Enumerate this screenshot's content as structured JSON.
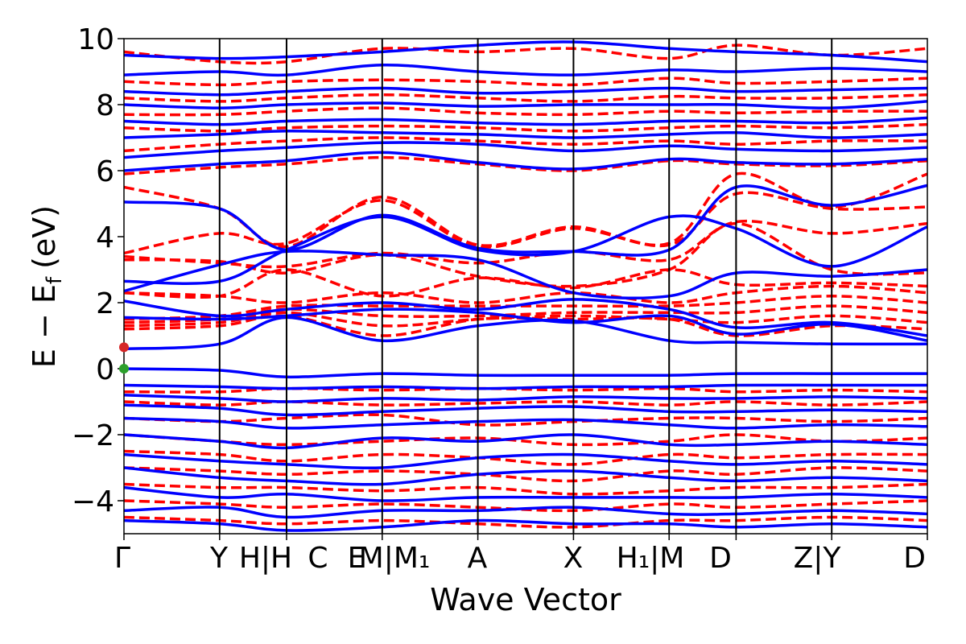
{
  "chart_data": {
    "type": "line",
    "xlabel": "Wave Vector",
    "ylabel": "E − E",
    "ylabel_subscript": "f",
    "ylabel_unit": "(eV)",
    "ylim": [
      -5,
      10
    ],
    "yticks": [
      10,
      8,
      6,
      4,
      2,
      0,
      -2,
      -4
    ],
    "ytick_labels": [
      "10",
      "8",
      "6",
      "4",
      "2",
      "0",
      "−2",
      "−4"
    ],
    "path_ticks": [
      {
        "label": "Γ",
        "pos": 0.0
      },
      {
        "label": "Y",
        "pos": 1.0
      },
      {
        "label": "H|H",
        "pos": 1.7
      },
      {
        "label": "C",
        "pos": 1.7
      },
      {
        "label": "E",
        "pos": 2.7
      },
      {
        "label": "M|M₁",
        "pos": 2.7
      },
      {
        "label": "A",
        "pos": 3.7
      },
      {
        "label": "X",
        "pos": 4.7
      },
      {
        "label": "H₁|M",
        "pos": 5.7
      },
      {
        "label": "D",
        "pos": 6.4
      },
      {
        "label": "Z|Y",
        "pos": 7.4
      },
      {
        "label": "D",
        "pos": 8.4
      }
    ],
    "xlim": [
      0,
      8.4
    ],
    "band_edge_markers": [
      {
        "x": 0,
        "y": 0.0,
        "color": "#2ca02c"
      },
      {
        "x": 0,
        "y": 0.65,
        "color": "#d62728"
      }
    ],
    "series": [
      {
        "style": "solid",
        "color": "#0000ff"
      },
      {
        "style": "dashed",
        "color": "#ff0000"
      }
    ],
    "bands_solid": [
      [
        5.05,
        4.85,
        3.6,
        4.65,
        3.65,
        3.55,
        3.6,
        5.5,
        4.95,
        5.55
      ],
      [
        2.65,
        2.65,
        3.6,
        4.6,
        3.6,
        3.55,
        4.6,
        4.25,
        3.1,
        4.3
      ],
      [
        2.35,
        3.15,
        3.55,
        3.45,
        3.3,
        2.3,
        2.2,
        2.9,
        2.8,
        3.0
      ],
      [
        2.05,
        1.6,
        1.8,
        2.0,
        1.8,
        2.1,
        1.8,
        1.25,
        1.4,
        1.0
      ],
      [
        1.55,
        1.5,
        1.6,
        1.8,
        1.7,
        1.4,
        1.6,
        1.05,
        1.35,
        0.85
      ],
      [
        0.6,
        0.75,
        1.55,
        0.85,
        1.3,
        1.45,
        0.85,
        0.8,
        0.75,
        0.75
      ],
      [
        0.0,
        -0.05,
        -0.25,
        -0.15,
        -0.2,
        -0.2,
        -0.2,
        -0.15,
        -0.15,
        -0.15
      ],
      [
        -0.5,
        -0.55,
        -0.6,
        -0.55,
        -0.6,
        -0.55,
        -0.55,
        -0.5,
        -0.5,
        -0.5
      ],
      [
        -0.8,
        -0.9,
        -1.0,
        -0.9,
        -0.95,
        -0.85,
        -0.9,
        -0.9,
        -0.85,
        -0.9
      ],
      [
        -1.1,
        -1.2,
        -1.4,
        -1.3,
        -1.2,
        -1.15,
        -1.3,
        -1.3,
        -1.25,
        -1.3
      ],
      [
        -1.5,
        -1.6,
        -1.8,
        -1.7,
        -1.6,
        -1.55,
        -1.7,
        -1.8,
        -1.7,
        -1.75
      ],
      [
        -2.0,
        -2.2,
        -2.4,
        -2.1,
        -2.2,
        -2.0,
        -2.3,
        -2.3,
        -2.2,
        -2.3
      ],
      [
        -2.6,
        -2.8,
        -2.9,
        -3.0,
        -2.7,
        -2.6,
        -2.8,
        -2.9,
        -2.8,
        -2.9
      ],
      [
        -3.0,
        -3.3,
        -3.4,
        -3.5,
        -3.2,
        -3.1,
        -3.3,
        -3.4,
        -3.3,
        -3.4
      ],
      [
        -3.6,
        -3.9,
        -3.8,
        -4.0,
        -3.9,
        -3.9,
        -3.9,
        -3.9,
        -3.8,
        -3.9
      ],
      [
        -4.3,
        -4.2,
        -4.5,
        -4.3,
        -4.3,
        -4.2,
        -4.4,
        -4.4,
        -4.3,
        -4.4
      ],
      [
        -4.6,
        -4.7,
        -4.9,
        -4.8,
        -4.6,
        -4.7,
        -4.7,
        -4.8,
        -4.7,
        -4.8
      ],
      [
        6.0,
        6.2,
        6.3,
        6.55,
        6.25,
        6.05,
        6.35,
        6.25,
        6.2,
        6.35
      ],
      [
        6.4,
        6.6,
        6.7,
        6.85,
        6.8,
        6.6,
        6.75,
        6.65,
        6.6,
        6.7
      ],
      [
        7.0,
        7.1,
        7.2,
        7.15,
        7.1,
        7.0,
        7.1,
        7.15,
        7.0,
        7.1
      ],
      [
        7.5,
        7.4,
        7.5,
        7.55,
        7.45,
        7.4,
        7.5,
        7.5,
        7.45,
        7.6
      ],
      [
        8.0,
        7.9,
        8.0,
        8.05,
        7.95,
        8.0,
        8.0,
        8.0,
        7.9,
        8.1
      ],
      [
        8.4,
        8.3,
        8.4,
        8.5,
        8.35,
        8.4,
        8.5,
        8.4,
        8.45,
        8.5
      ],
      [
        8.9,
        9.0,
        8.9,
        9.2,
        9.0,
        8.9,
        9.05,
        9.0,
        9.1,
        9.0
      ],
      [
        9.5,
        9.4,
        9.45,
        9.6,
        9.8,
        9.9,
        9.7,
        9.6,
        9.5,
        9.3
      ]
    ],
    "bands_dashed": [
      [
        5.5,
        4.85,
        3.7,
        5.2,
        3.75,
        4.3,
        3.8,
        5.9,
        4.9,
        5.9
      ],
      [
        3.5,
        4.1,
        3.8,
        5.1,
        3.7,
        4.25,
        3.75,
        5.3,
        4.85,
        4.9
      ],
      [
        3.4,
        3.2,
        3.1,
        3.5,
        3.2,
        3.55,
        3.3,
        4.45,
        4.1,
        4.4
      ],
      [
        3.3,
        3.25,
        2.9,
        3.45,
        2.8,
        2.5,
        3.0,
        4.4,
        3.0,
        2.9
      ],
      [
        2.3,
        2.2,
        3.0,
        2.2,
        2.75,
        2.45,
        3.0,
        2.55,
        2.6,
        2.5
      ],
      [
        2.3,
        2.2,
        2.0,
        2.3,
        2.0,
        2.3,
        2.0,
        2.3,
        2.5,
        2.3
      ],
      [
        1.5,
        1.6,
        1.9,
        1.9,
        1.9,
        1.9,
        1.9,
        2.0,
        2.2,
        2.0
      ],
      [
        1.4,
        1.5,
        1.8,
        1.6,
        1.6,
        1.7,
        1.7,
        1.7,
        1.9,
        1.7
      ],
      [
        1.3,
        1.4,
        1.7,
        1.3,
        1.5,
        1.6,
        1.5,
        1.4,
        1.6,
        1.4
      ],
      [
        1.2,
        1.3,
        1.6,
        1.0,
        1.5,
        1.5,
        1.5,
        1.0,
        1.3,
        1.2
      ],
      [
        -0.7,
        -0.7,
        -0.6,
        -0.65,
        -0.6,
        -0.65,
        -0.6,
        -0.7,
        -0.65,
        -0.7
      ],
      [
        -1.0,
        -1.1,
        -1.0,
        -1.1,
        -1.05,
        -1.0,
        -1.1,
        -1.0,
        -1.1,
        -1.0
      ],
      [
        -1.5,
        -1.6,
        -1.5,
        -1.4,
        -1.7,
        -1.6,
        -1.5,
        -1.5,
        -1.6,
        -1.5
      ],
      [
        -2.0,
        -2.2,
        -2.3,
        -2.2,
        -2.1,
        -2.3,
        -2.2,
        -2.0,
        -2.2,
        -2.1
      ],
      [
        -2.5,
        -2.6,
        -2.8,
        -2.6,
        -2.7,
        -2.9,
        -2.6,
        -2.7,
        -2.6,
        -2.6
      ],
      [
        -3.0,
        -3.1,
        -3.2,
        -3.1,
        -3.2,
        -3.4,
        -3.1,
        -3.2,
        -3.0,
        -3.1
      ],
      [
        -3.5,
        -3.6,
        -3.6,
        -3.7,
        -3.6,
        -3.8,
        -3.7,
        -3.6,
        -3.6,
        -3.5
      ],
      [
        -4.0,
        -4.1,
        -4.2,
        -4.1,
        -4.2,
        -4.3,
        -4.1,
        -4.2,
        -4.1,
        -4.0
      ],
      [
        -4.5,
        -4.6,
        -4.7,
        -4.6,
        -4.7,
        -4.8,
        -4.6,
        -4.6,
        -4.5,
        -4.6
      ],
      [
        5.9,
        6.1,
        6.2,
        6.4,
        6.2,
        6.0,
        6.3,
        6.2,
        6.15,
        6.3
      ],
      [
        6.6,
        6.8,
        6.9,
        7.0,
        6.9,
        6.8,
        6.9,
        6.8,
        6.9,
        6.9
      ],
      [
        7.3,
        7.2,
        7.3,
        7.35,
        7.3,
        7.2,
        7.3,
        7.35,
        7.3,
        7.4
      ],
      [
        7.7,
        7.7,
        7.8,
        7.9,
        7.75,
        7.7,
        7.8,
        7.75,
        7.8,
        7.8
      ],
      [
        8.2,
        8.1,
        8.2,
        8.3,
        8.2,
        8.1,
        8.25,
        8.2,
        8.2,
        8.3
      ],
      [
        8.7,
        8.6,
        8.7,
        8.75,
        8.7,
        8.6,
        8.8,
        8.65,
        8.7,
        8.8
      ],
      [
        9.6,
        9.3,
        9.3,
        9.7,
        9.6,
        9.7,
        9.4,
        9.8,
        9.5,
        9.7
      ]
    ]
  }
}
